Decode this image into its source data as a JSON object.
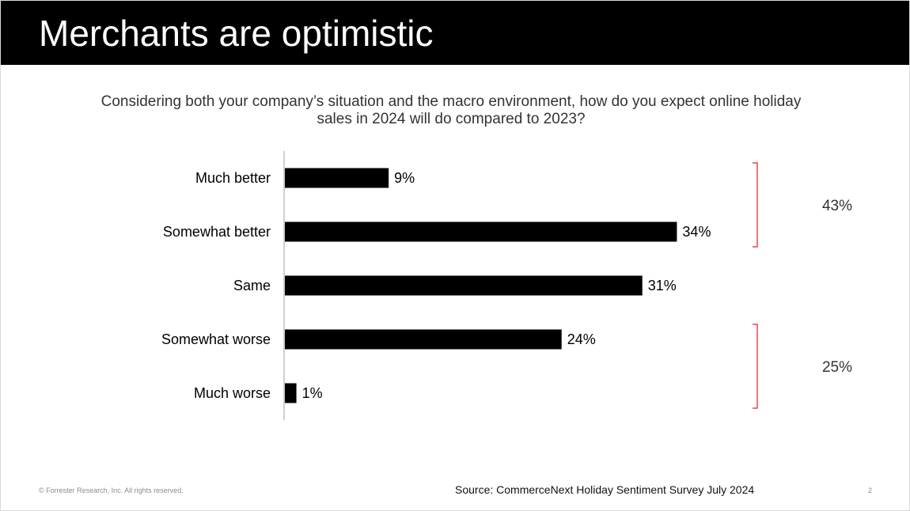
{
  "slide": {
    "title": "Merchants are optimistic",
    "question": "Considering both your company’s situation and the macro environment, how do you expect online holiday sales in 2024 will do compared to 2023?",
    "footer_copyright": "© Forrester Research, Inc. All rights reserved.",
    "source": "Source: CommerceNext Holiday Sentiment Survey July 2024",
    "page_number": "2"
  },
  "chart_data": {
    "type": "bar",
    "orientation": "horizontal",
    "categories": [
      "Much better",
      "Somewhat better",
      "Same",
      "Somewhat worse",
      "Much worse"
    ],
    "values": [
      9,
      34,
      31,
      24,
      1
    ],
    "value_labels": [
      "9%",
      "34%",
      "31%",
      "24%",
      "1%"
    ],
    "unit": "%",
    "xlim": [
      0,
      35
    ],
    "grid": false,
    "bar_color": "#000000",
    "groups": [
      {
        "label": "43%",
        "value": 43,
        "from": 0,
        "to": 1
      },
      {
        "label": "25%",
        "value": 25,
        "from": 3,
        "to": 4
      }
    ],
    "bracket_color": "#e8474c"
  }
}
